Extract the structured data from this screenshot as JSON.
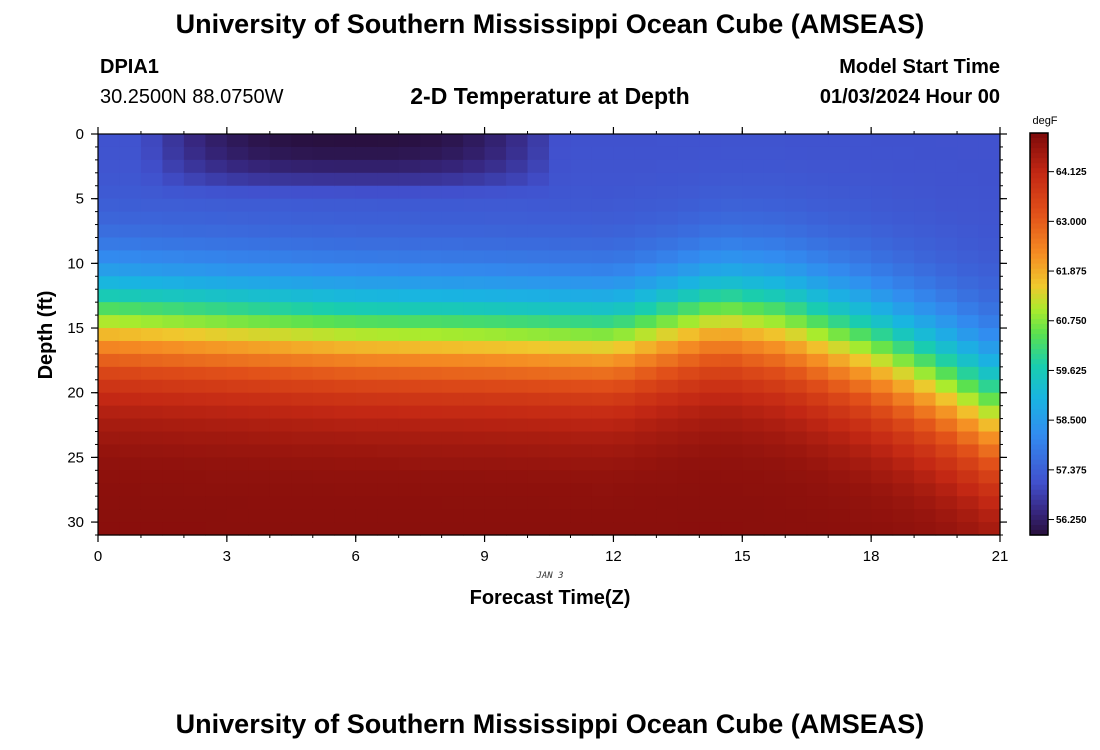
{
  "header": {
    "title": "University of Southern Mississippi Ocean Cube (AMSEAS)",
    "station_id": "DPIA1",
    "station_coords": "30.2500N  88.0750W",
    "plot_title": "2-D Temperature at Depth",
    "model_label": "Model Start Time",
    "model_time": "01/03/2024 Hour 00"
  },
  "footer": {
    "title": "University of Southern Mississippi Ocean Cube (AMSEAS)"
  },
  "chart_data": {
    "type": "heatmap",
    "title": "2-D Temperature at Depth",
    "xlabel": "Forecast Time(Z)",
    "ylabel": "Depth (ft)",
    "x_ticks": [
      0,
      3,
      6,
      9,
      12,
      15,
      18,
      21
    ],
    "y_ticks": [
      0,
      5,
      10,
      15,
      20,
      25,
      30
    ],
    "xlim": [
      0,
      21
    ],
    "ylim": [
      0,
      31
    ],
    "date_label": "JAN 3",
    "colorbar": {
      "unit": "degF",
      "range": [
        55.9,
        65.0
      ],
      "ticks": [
        "64.125",
        "63.000",
        "61.875",
        "60.750",
        "59.625",
        "58.500",
        "57.375",
        "56.250"
      ]
    },
    "x_hours": [
      0,
      3,
      6,
      9,
      12,
      14.5,
      16,
      18,
      19.5,
      21
    ],
    "thermocline_depth_ft": [
      14.2,
      14.7,
      15.2,
      15.4,
      15.7,
      13.8,
      14.5,
      16.6,
      18.8,
      21.5
    ],
    "surface_cold_patch": {
      "hours": [
        1.8,
        10
      ],
      "depth_ft": [
        0,
        3.6
      ],
      "min_degF": 56.0
    },
    "surface_temp_degF": 57.1,
    "bottom_temp_degF": 64.6
  }
}
